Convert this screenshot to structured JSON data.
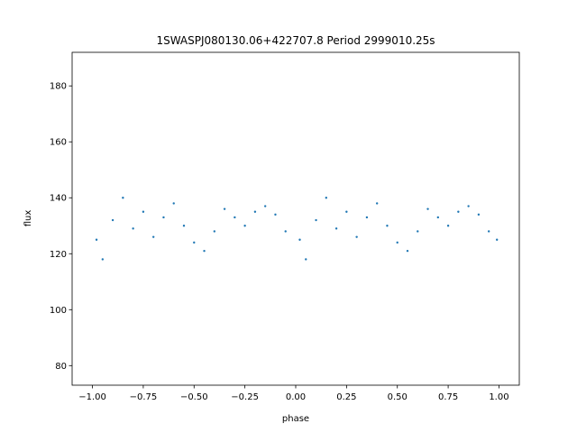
{
  "chart_data": {
    "type": "scatter",
    "title": "1SWASPJ080130.06+422707.8 Period 2999010.25s",
    "xlabel": "phase",
    "ylabel": "flux",
    "xlim": [
      -1.1,
      1.1
    ],
    "ylim": [
      73,
      192
    ],
    "x_ticks": [
      -1.0,
      -0.75,
      -0.5,
      -0.25,
      0.0,
      0.25,
      0.5,
      0.75,
      1.0
    ],
    "x_tick_labels": [
      "−1.00",
      "−0.75",
      "−0.50",
      "−0.25",
      "0.00",
      "0.25",
      "0.50",
      "0.75",
      "1.00"
    ],
    "y_ticks": [
      80,
      100,
      120,
      140,
      160,
      180
    ],
    "y_tick_labels": [
      "80",
      "100",
      "120",
      "140",
      "160",
      "180"
    ],
    "grid": false,
    "legend": "none",
    "marker_color": "#1f77b4",
    "series": [
      {
        "x": [
          -0.98,
          -0.95,
          -0.9,
          -0.85,
          -0.8,
          -0.75,
          -0.7,
          -0.65,
          -0.6,
          -0.55,
          -0.5,
          -0.45,
          -0.4,
          -0.35,
          -0.3,
          -0.25,
          -0.2,
          -0.15,
          -0.1,
          -0.05,
          0.02,
          0.05,
          0.1,
          0.15,
          0.2,
          0.25,
          0.3,
          0.35,
          0.4,
          0.45,
          0.5,
          0.55,
          0.6,
          0.65,
          0.7,
          0.75,
          0.8,
          0.85,
          0.9,
          0.95,
          0.99
        ],
        "y": [
          125,
          118,
          132,
          140,
          129,
          135,
          126,
          133,
          138,
          130,
          124,
          121,
          128,
          136,
          133,
          130,
          135,
          137,
          134,
          128,
          125,
          118,
          132,
          140,
          129,
          135,
          126,
          133,
          138,
          130,
          124,
          121,
          128,
          136,
          133,
          130,
          135,
          137,
          134,
          128,
          125
        ]
      }
    ]
  }
}
